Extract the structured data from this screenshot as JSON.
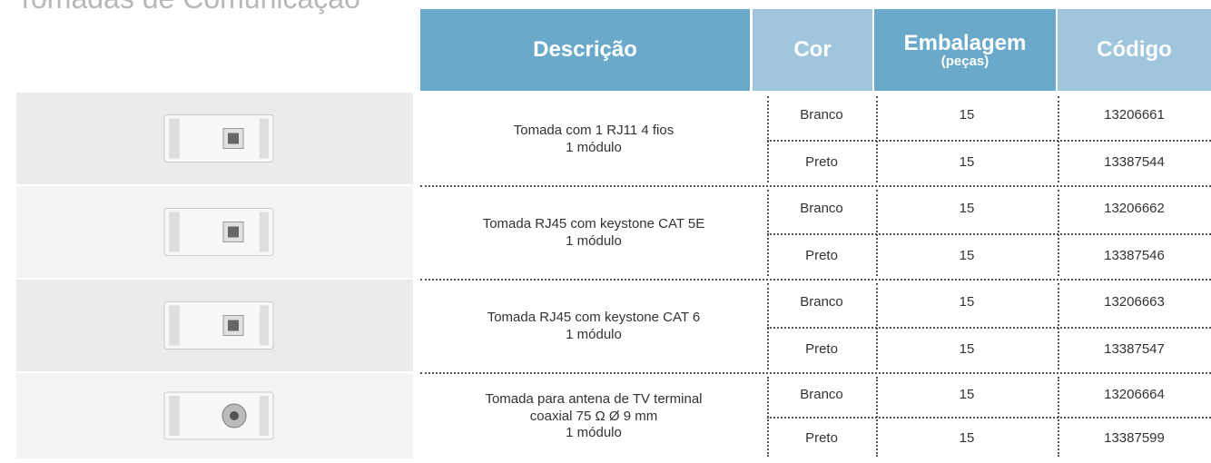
{
  "title": "Tomadas de Comunicação",
  "header": {
    "description": "Descrição",
    "color": "Cor",
    "package": "Embalagem",
    "package_unit": "(peças)",
    "code": "Código"
  },
  "rows": [
    {
      "description": [
        "Tomada com 1 RJ11 4 fios",
        "1 módulo"
      ],
      "variants": [
        {
          "color": "Branco",
          "qty": 15,
          "code": "13206661"
        },
        {
          "color": "Preto",
          "qty": 15,
          "code": "13387544"
        }
      ]
    },
    {
      "description": [
        "Tomada RJ45 com keystone CAT 5E",
        "1 módulo"
      ],
      "variants": [
        {
          "color": "Branco",
          "qty": 15,
          "code": "13206662"
        },
        {
          "color": "Preto",
          "qty": 15,
          "code": "13387546"
        }
      ]
    },
    {
      "description": [
        "Tomada RJ45 com keystone CAT 6",
        "1 módulo"
      ],
      "variants": [
        {
          "color": "Branco",
          "qty": 15,
          "code": "13206663"
        },
        {
          "color": "Preto",
          "qty": 15,
          "code": "13387547"
        }
      ]
    },
    {
      "description": [
        "Tomada para antena de TV terminal",
        "coaxial 75 Ω Ø 9 mm",
        "1 módulo"
      ],
      "variants": [
        {
          "color": "Branco",
          "qty": 15,
          "code": "13206664"
        },
        {
          "color": "Preto",
          "qty": 15,
          "code": "13387599"
        }
      ]
    }
  ]
}
